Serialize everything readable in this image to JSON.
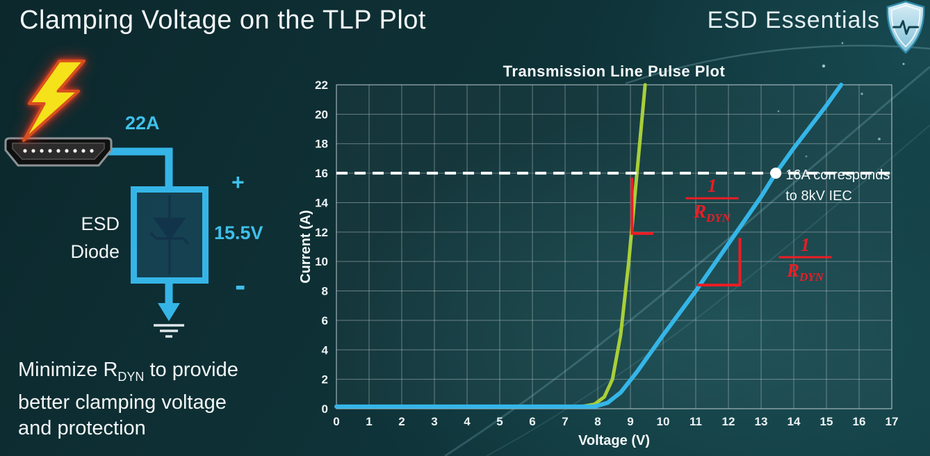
{
  "slide": {
    "title": "Clamping Voltage on the TLP Plot",
    "brand": "ESD Essentials"
  },
  "footer": {
    "line1_prefix": "Minimize R",
    "line1_sub": "DYN",
    "line1_suffix": " to provide",
    "line2": "better clamping voltage",
    "line3": "and protection"
  },
  "diagram": {
    "surge_current": "22A",
    "device_line1": "ESD",
    "device_line2": "Diode",
    "plus": "+",
    "clamp_voltage": "15.5V",
    "minus": "-"
  },
  "chart_data": {
    "type": "line",
    "title": "Transmission Line Pulse Plot",
    "xlabel": "Voltage (V)",
    "ylabel": "Current (A)",
    "xlim": [
      0,
      17
    ],
    "ylim": [
      0,
      22
    ],
    "xticks": [
      0,
      1,
      2,
      3,
      4,
      5,
      6,
      7,
      8,
      9,
      10,
      11,
      12,
      13,
      14,
      15,
      16,
      17
    ],
    "yticks": [
      0,
      2,
      4,
      6,
      8,
      10,
      12,
      14,
      16,
      18,
      20,
      22
    ],
    "grid": true,
    "legend": "none",
    "series": [
      {
        "name": "green-curve-low-rdyn",
        "color": "#a9cf38",
        "width": 5,
        "points": [
          [
            0,
            0.15
          ],
          [
            7.5,
            0.15
          ],
          [
            7.9,
            0.3
          ],
          [
            8.2,
            0.8
          ],
          [
            8.45,
            2.0
          ],
          [
            8.7,
            5.0
          ],
          [
            8.95,
            10.0
          ],
          [
            9.2,
            16.0
          ],
          [
            9.45,
            22
          ]
        ]
      },
      {
        "name": "blue-curve-high-rdyn",
        "color": "#35b5e7",
        "width": 6,
        "points": [
          [
            0,
            0.15
          ],
          [
            7.9,
            0.15
          ],
          [
            8.3,
            0.4
          ],
          [
            8.7,
            1.1
          ],
          [
            9.2,
            2.5
          ],
          [
            10,
            5.0
          ],
          [
            11,
            8.0
          ],
          [
            12,
            11.2
          ],
          [
            13,
            14.4
          ],
          [
            13.45,
            16.0
          ],
          [
            14,
            17.7
          ],
          [
            15,
            20.6
          ],
          [
            15.45,
            22
          ]
        ]
      }
    ],
    "reference_line": {
      "y": 16,
      "color": "#ffffff",
      "dash": [
        16,
        10
      ],
      "width": 4
    },
    "marker": {
      "x": 13.45,
      "y": 16,
      "radius": 8,
      "color": "#ffffff"
    },
    "annotation": {
      "lines": [
        "16A corresponds",
        "to 8kV IEC"
      ],
      "x": 13.75,
      "y": 16,
      "color": "#f2f6f7"
    },
    "slope_indicators": [
      {
        "color": "#ed1c24",
        "width": 4,
        "points": [
          [
            9.05,
            15.7
          ],
          [
            9.05,
            11.9
          ],
          [
            9.7,
            11.9
          ]
        ]
      },
      {
        "color": "#ed1c24",
        "width": 4,
        "points": [
          [
            11.05,
            8.4
          ],
          [
            12.35,
            8.4
          ],
          [
            12.35,
            11.6
          ]
        ]
      }
    ],
    "slope_labels": [
      {
        "numerator": "1",
        "den_base": "R",
        "den_sub": "DYN",
        "x": 11.5,
        "y": 14.2,
        "color": "#ed1c24"
      },
      {
        "numerator": "1",
        "den_base": "R",
        "den_sub": "DYN",
        "x": 14.35,
        "y": 10.2,
        "color": "#ed1c24"
      }
    ]
  }
}
